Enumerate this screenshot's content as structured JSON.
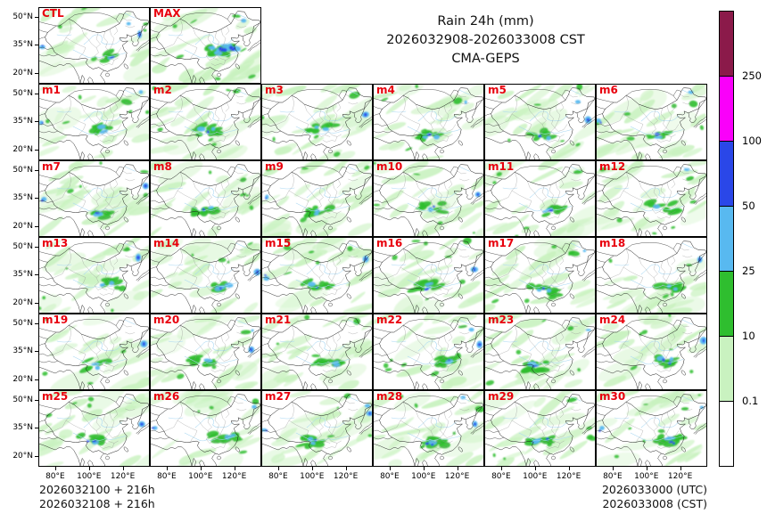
{
  "figure": {
    "title_line1": "Rain 24h (mm)",
    "title_line2": "2026032908-2026033008 CST",
    "title_line3": "CMA-GEPS"
  },
  "footer": {
    "left_line1": "2026032100 + 216h",
    "left_line2": "2026032108 + 216h",
    "right_line1": "2026033000 (UTC)",
    "right_line2": "2026033008 (CST)"
  },
  "colors": {
    "panel_label": "#e8000d",
    "light_rain": "#C9F2C0",
    "moderate_rain": "#2FBE2F",
    "heavy_rain": "#58B9F0",
    "very_heavy_rain": "#2A47E8",
    "extreme_rain": "#FA00FA",
    "max_rain": "#8B1A4A",
    "no_rain": "#FFFFFF"
  },
  "chart_data": {
    "type": "heatmap",
    "title": "Rain 24h (mm)",
    "valid_period": "2026032908-2026033008 CST",
    "model": "CMA-GEPS",
    "panel_labels": [
      "CTL",
      "MAX",
      "m1",
      "m2",
      "m3",
      "m4",
      "m5",
      "m6",
      "m7",
      "m8",
      "m9",
      "m10",
      "m11",
      "m12",
      "m13",
      "m14",
      "m15",
      "m16",
      "m17",
      "m18",
      "m19",
      "m20",
      "m21",
      "m22",
      "m23",
      "m24",
      "m25",
      "m26",
      "m27",
      "m28",
      "m29",
      "m30"
    ],
    "colorbar_levels_mm": [
      0.1,
      10,
      25,
      50,
      100,
      250
    ],
    "colorbar_colors_low_to_high": [
      "#FFFFFF",
      "#C9F2C0",
      "#2FBE2F",
      "#58B9F0",
      "#2A47E8",
      "#FA00FA",
      "#8B1A4A"
    ],
    "x_tick_labels": [
      "80°E",
      "100°E",
      "120°E"
    ],
    "y_tick_labels": [
      "50°N",
      "35°N",
      "20°N"
    ],
    "init_times": [
      "2026032100 + 216h",
      "2026032108 + 216h"
    ],
    "valid_times": [
      "2026033000 (UTC)",
      "2026033008 (CST)"
    ],
    "legend_position": "right",
    "grid": "off"
  }
}
